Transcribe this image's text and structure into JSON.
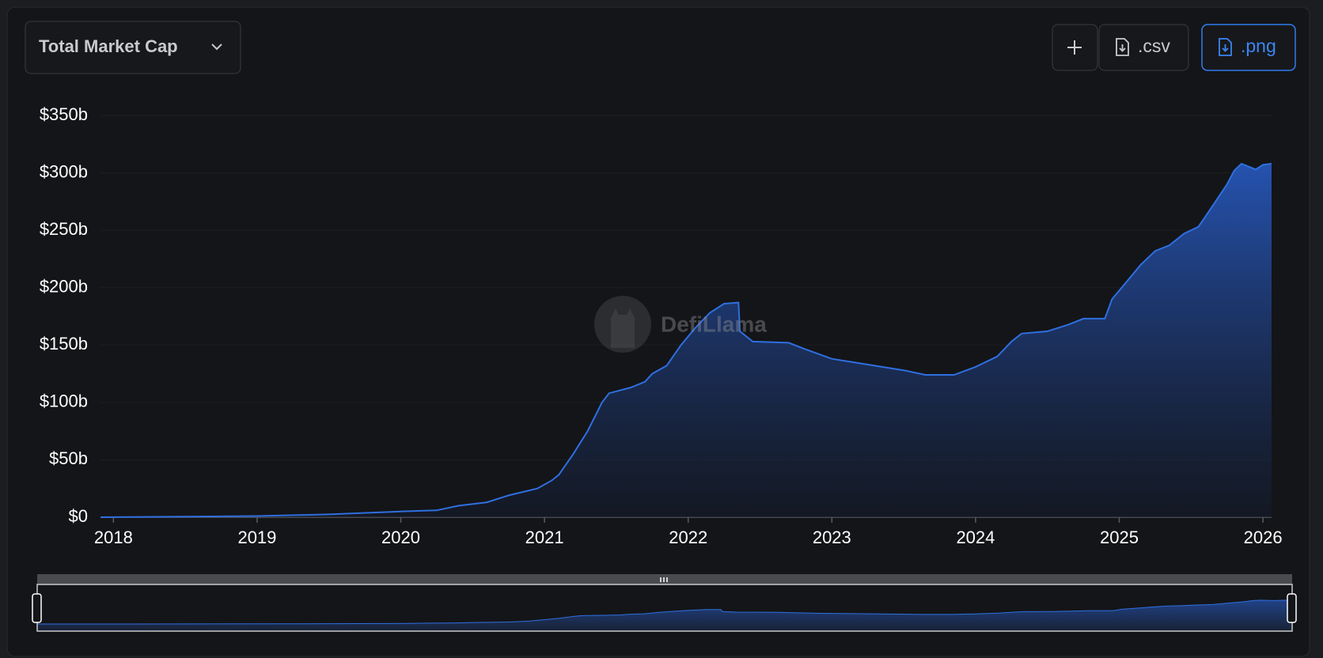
{
  "controls": {
    "metric_select": "Total Market Cap",
    "csv_button": ".csv",
    "png_button": ".png"
  },
  "watermark": "DefiLlama",
  "chart_data": {
    "type": "area",
    "color": "#2f6fe0",
    "grid": true,
    "x": [
      2017.91,
      2018.5,
      2019.0,
      2019.5,
      2020.0,
      2020.25,
      2020.4,
      2020.6,
      2020.75,
      2020.95,
      2021.05,
      2021.1,
      2021.2,
      2021.3,
      2021.4,
      2021.45,
      2021.6,
      2021.7,
      2021.75,
      2021.85,
      2021.95,
      2022.05,
      2022.15,
      2022.25,
      2022.35,
      2022.36,
      2022.45,
      2022.7,
      2022.8,
      2023.0,
      2023.2,
      2023.5,
      2023.65,
      2023.85,
      2024.0,
      2024.15,
      2024.25,
      2024.32,
      2024.5,
      2024.65,
      2024.75,
      2024.9,
      2024.95,
      2025.05,
      2025.15,
      2025.25,
      2025.35,
      2025.45,
      2025.55,
      2025.6,
      2025.75,
      2025.8,
      2025.85,
      2025.95,
      2026.0,
      2026.06
    ],
    "values": [
      0,
      0.5,
      1,
      2.5,
      5,
      6,
      10,
      13,
      19,
      25,
      32,
      37,
      55,
      75,
      100,
      108,
      113,
      118,
      125,
      132,
      150,
      165,
      178,
      186,
      187,
      162,
      153,
      152,
      147,
      138,
      134,
      128,
      124,
      124,
      131,
      140,
      153,
      160,
      162,
      168,
      173,
      173,
      190,
      205,
      220,
      232,
      237,
      247,
      253,
      262,
      290,
      302,
      308,
      303,
      307,
      308
    ],
    "xlim": [
      2017.91,
      2026.06
    ],
    "xticks": [
      2018,
      2019,
      2020,
      2021,
      2022,
      2023,
      2024,
      2025,
      2026
    ],
    "ylim": [
      0,
      350
    ],
    "yticks": [
      {
        "value": 0,
        "label": "$0"
      },
      {
        "value": 50,
        "label": "$50b"
      },
      {
        "value": 100,
        "label": "$100b"
      },
      {
        "value": 150,
        "label": "$150b"
      },
      {
        "value": 200,
        "label": "$200b"
      },
      {
        "value": 250,
        "label": "$250b"
      },
      {
        "value": 300,
        "label": "$300b"
      },
      {
        "value": 350,
        "label": "$350b"
      }
    ]
  }
}
